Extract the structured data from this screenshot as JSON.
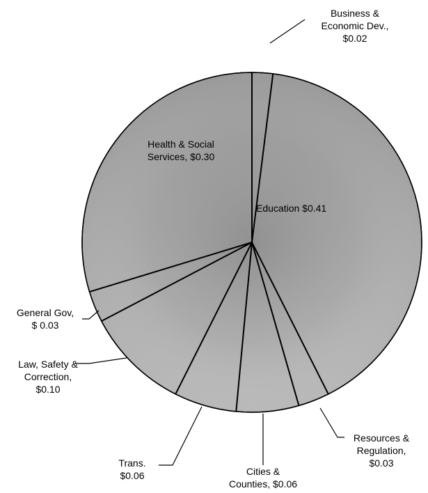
{
  "chart_data": {
    "type": "pie",
    "slices": [
      {
        "label": "Business & Economic Dev.",
        "label_lines": [
          "Business &",
          "Economic Dev.,",
          "$0.02"
        ],
        "value": 0.02
      },
      {
        "label": "Education",
        "label_lines": [
          "Education $0.41"
        ],
        "value": 0.41
      },
      {
        "label": "Resources & Regulation",
        "label_lines": [
          "Resources &",
          "Regulation,",
          "$0.03"
        ],
        "value": 0.03
      },
      {
        "label": "Cities & Counties",
        "label_lines": [
          "Cities &",
          "Counties, $0.06"
        ],
        "value": 0.06
      },
      {
        "label": "Trans.",
        "label_lines": [
          "Trans.",
          "$0.06"
        ],
        "value": 0.06
      },
      {
        "label": "Law, Safety & Correction",
        "label_lines": [
          "Law, Safety &",
          "Correction,",
          "$0.10"
        ],
        "value": 0.1
      },
      {
        "label": "General Gov",
        "label_lines": [
          "General Gov,",
          "$ 0.03"
        ],
        "value": 0.03
      },
      {
        "label": "Health & Social Services",
        "label_lines": [
          "Health & Social",
          "Services, $0.30"
        ],
        "value": 0.3
      }
    ],
    "start": "12 o'clock",
    "direction": "clockwise",
    "fill_color": "#a6a6a6",
    "edge_color": "#000000"
  }
}
